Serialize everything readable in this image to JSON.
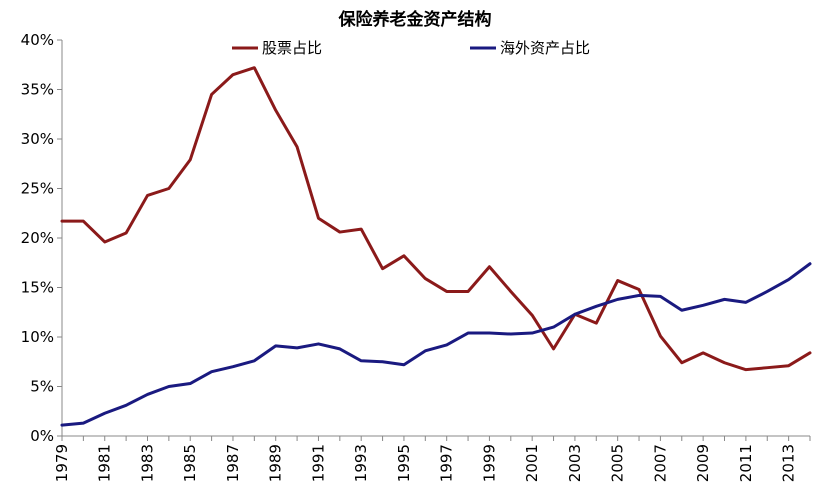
{
  "chart_data": {
    "type": "line",
    "title": "保险养老金资产结构",
    "xlabel": "",
    "ylabel": "",
    "x": [
      1979,
      1980,
      1981,
      1982,
      1983,
      1984,
      1985,
      1986,
      1987,
      1988,
      1989,
      1990,
      1991,
      1992,
      1993,
      1994,
      1995,
      1996,
      1997,
      1998,
      1999,
      2000,
      2001,
      2002,
      2003,
      2004,
      2005,
      2006,
      2007,
      2008,
      2009,
      2010,
      2011,
      2012,
      2013,
      2014
    ],
    "x_tick_labels": [
      "1979",
      "1981",
      "1983",
      "1985",
      "1987",
      "1989",
      "1991",
      "1993",
      "1995",
      "1997",
      "1999",
      "2001",
      "2003",
      "2005",
      "2007",
      "2009",
      "2011",
      "2013"
    ],
    "y_tick_labels": [
      "0%",
      "5%",
      "10%",
      "15%",
      "20%",
      "25%",
      "30%",
      "35%",
      "40%"
    ],
    "ylim": [
      0,
      40
    ],
    "grid": false,
    "legend_position": "top",
    "series": [
      {
        "name": "股票占比",
        "color": "#8b1a1a",
        "values": [
          21.7,
          21.7,
          19.6,
          20.5,
          24.3,
          25.0,
          27.9,
          34.5,
          36.5,
          37.2,
          32.9,
          29.2,
          22.0,
          20.6,
          20.9,
          16.9,
          18.2,
          15.9,
          14.6,
          14.6,
          17.1,
          14.6,
          12.2,
          8.8,
          12.3,
          11.4,
          15.7,
          14.8,
          10.1,
          7.4,
          8.4,
          7.4,
          6.7,
          6.9,
          7.1,
          8.4
        ]
      },
      {
        "name": "海外资产占比",
        "color": "#1a1a80",
        "values": [
          1.1,
          1.3,
          2.3,
          3.1,
          4.2,
          5.0,
          5.3,
          6.5,
          7.0,
          7.6,
          9.1,
          8.9,
          9.3,
          8.8,
          7.6,
          7.5,
          7.2,
          8.6,
          9.2,
          10.4,
          10.4,
          10.3,
          10.4,
          11.0,
          12.3,
          13.1,
          13.8,
          14.2,
          14.1,
          12.7,
          13.2,
          13.8,
          13.5,
          14.6,
          15.8,
          17.4
        ]
      }
    ]
  }
}
